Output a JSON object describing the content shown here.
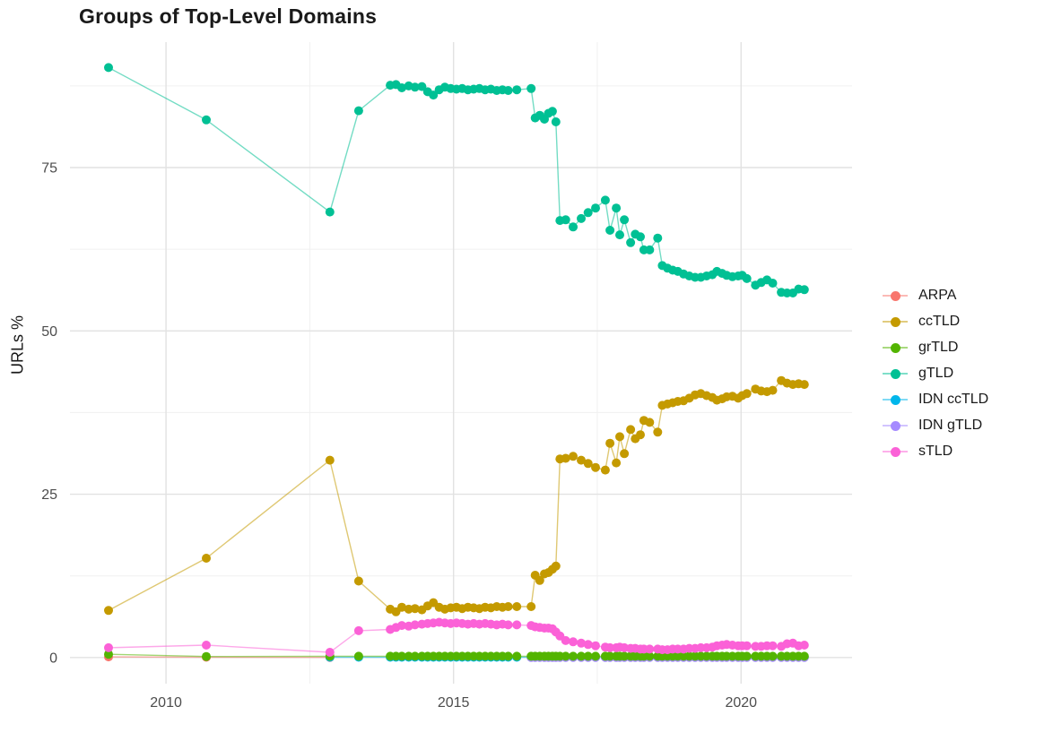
{
  "title": "Groups of Top-Level Domains",
  "legend": {
    "position": "right",
    "items": [
      "ARPA",
      "ccTLD",
      "grTLD",
      "gTLD",
      "IDN ccTLD",
      "IDN gTLD",
      "sTLD"
    ]
  },
  "chart_data": {
    "type": "line",
    "title": "Groups of Top-Level Domains",
    "xlabel": "",
    "ylabel": "URLs %",
    "grid": true,
    "legend_position": "right",
    "x_ticks": [
      2010,
      2015,
      2020
    ],
    "x_minor_ticks": [
      2012.5,
      2017.5
    ],
    "y_ticks": [
      0,
      25,
      50,
      75
    ],
    "y_minor_ticks": [
      12.5,
      37.5,
      62.5,
      87.5
    ],
    "xlim": [
      2008.33,
      2021.93
    ],
    "ylim": [
      -4,
      94.2
    ],
    "x": [
      2009.0,
      2010.7,
      2012.85,
      2013.35,
      2013.9,
      2014.0,
      2014.1,
      2014.22,
      2014.33,
      2014.45,
      2014.55,
      2014.65,
      2014.75,
      2014.85,
      2014.95,
      2015.05,
      2015.15,
      2015.25,
      2015.35,
      2015.45,
      2015.55,
      2015.65,
      2015.75,
      2015.85,
      2015.95,
      2016.1,
      2016.35,
      2016.42,
      2016.5,
      2016.58,
      2016.65,
      2016.72,
      2016.78,
      2016.85,
      2016.95,
      2017.08,
      2017.22,
      2017.34,
      2017.47,
      2017.64,
      2017.72,
      2017.83,
      2017.89,
      2017.97,
      2018.08,
      2018.16,
      2018.25,
      2018.31,
      2018.41,
      2018.55,
      2018.63,
      2018.72,
      2018.81,
      2018.9,
      2019.0,
      2019.1,
      2019.2,
      2019.3,
      2019.4,
      2019.5,
      2019.58,
      2019.67,
      2019.75,
      2019.85,
      2019.95,
      2020.02,
      2020.1,
      2020.25,
      2020.35,
      2020.45,
      2020.55,
      2020.7,
      2020.8,
      2020.9,
      2021.0,
      2021.1
    ],
    "series": [
      {
        "name": "ARPA",
        "color": "#F8766D",
        "values": [
          0.1,
          0.05,
          0.02,
          null,
          null,
          null,
          null,
          null,
          null,
          null,
          null,
          null,
          null,
          null,
          null,
          null,
          null,
          null,
          null,
          null,
          null,
          null,
          null,
          null,
          null,
          null,
          null,
          null,
          null,
          null,
          null,
          null,
          null,
          null,
          null,
          null,
          null,
          null,
          null,
          null,
          null,
          null,
          null,
          null,
          null,
          null,
          null,
          null,
          null,
          null,
          null,
          null,
          null,
          null,
          null,
          null,
          null,
          null,
          null,
          null,
          null,
          null,
          null,
          null,
          null,
          null,
          null,
          null,
          null,
          null,
          null,
          null,
          null,
          null,
          null,
          null
        ]
      },
      {
        "name": "ccTLD",
        "color": "#C49A00",
        "values": [
          7.2,
          15.2,
          30.2,
          11.7,
          7.4,
          7.0,
          7.7,
          7.4,
          7.5,
          7.3,
          7.9,
          8.4,
          7.7,
          7.4,
          7.6,
          7.7,
          7.5,
          7.7,
          7.6,
          7.5,
          7.7,
          7.6,
          7.8,
          7.7,
          7.8,
          7.8,
          7.8,
          12.6,
          11.8,
          12.8,
          13.0,
          13.5,
          14.0,
          30.4,
          30.5,
          30.8,
          30.2,
          29.7,
          29.1,
          28.7,
          32.8,
          29.8,
          33.8,
          31.2,
          34.9,
          33.5,
          34.1,
          36.3,
          36.0,
          34.5,
          38.6,
          38.8,
          39.0,
          39.2,
          39.3,
          39.7,
          40.2,
          40.4,
          40.1,
          39.8,
          39.4,
          39.6,
          39.9,
          40.0,
          39.7,
          40.1,
          40.4,
          41.1,
          40.8,
          40.7,
          40.9,
          42.4,
          42.0,
          41.8,
          41.9,
          41.8
        ]
      },
      {
        "name": "grTLD",
        "color": "#53B400",
        "values": [
          0.5,
          0.15,
          0.2,
          0.2,
          0.2,
          0.2,
          0.2,
          0.2,
          0.2,
          0.2,
          0.2,
          0.2,
          0.2,
          0.2,
          0.2,
          0.2,
          0.2,
          0.2,
          0.2,
          0.2,
          0.2,
          0.2,
          0.2,
          0.2,
          0.2,
          0.2,
          0.2,
          0.2,
          0.2,
          0.2,
          0.2,
          0.2,
          0.2,
          0.2,
          0.2,
          0.2,
          0.2,
          0.2,
          0.2,
          0.2,
          0.2,
          0.2,
          0.2,
          0.2,
          0.2,
          0.2,
          0.2,
          0.2,
          0.2,
          0.2,
          0.2,
          0.2,
          0.2,
          0.2,
          0.2,
          0.2,
          0.2,
          0.2,
          0.2,
          0.2,
          0.2,
          0.2,
          0.2,
          0.2,
          0.2,
          0.2,
          0.2,
          0.2,
          0.2,
          0.2,
          0.2,
          0.2,
          0.2,
          0.2,
          0.2,
          0.2
        ]
      },
      {
        "name": "gTLD",
        "color": "#00C094",
        "values": [
          90.3,
          82.3,
          68.2,
          83.7,
          87.6,
          87.7,
          87.2,
          87.5,
          87.3,
          87.4,
          86.6,
          86.1,
          86.9,
          87.3,
          87.1,
          87.0,
          87.1,
          86.9,
          87.0,
          87.1,
          86.9,
          87.0,
          86.8,
          86.9,
          86.8,
          86.9,
          87.1,
          82.6,
          83.0,
          82.4,
          83.3,
          83.6,
          82.0,
          66.9,
          67.0,
          65.9,
          67.2,
          68.1,
          68.8,
          70.0,
          65.4,
          68.8,
          64.7,
          67.0,
          63.5,
          64.8,
          64.4,
          62.4,
          62.4,
          64.2,
          60.0,
          59.6,
          59.3,
          59.1,
          58.7,
          58.4,
          58.2,
          58.2,
          58.4,
          58.6,
          59.1,
          58.8,
          58.5,
          58.3,
          58.4,
          58.5,
          58.0,
          57.0,
          57.4,
          57.8,
          57.3,
          55.9,
          55.8,
          55.8,
          56.4,
          56.3
        ]
      },
      {
        "name": "IDN ccTLD",
        "color": "#00B6EB",
        "values": [
          null,
          null,
          0.05,
          0.05,
          0.05,
          0.05,
          0.05,
          0.05,
          0.05,
          0.05,
          0.05,
          0.05,
          0.05,
          0.05,
          0.05,
          0.05,
          0.05,
          0.05,
          0.05,
          0.05,
          0.05,
          0.05,
          0.05,
          0.05,
          0.05,
          0.05,
          0.05,
          0.05,
          0.05,
          0.05,
          0.05,
          0.05,
          0.05,
          0.05,
          0.05,
          0.05,
          0.05,
          0.05,
          0.05,
          0.05,
          0.05,
          0.05,
          0.05,
          0.05,
          0.05,
          0.05,
          0.05,
          0.05,
          0.05,
          0.05,
          0.05,
          0.05,
          0.05,
          0.05,
          0.05,
          0.05,
          0.05,
          0.05,
          0.05,
          0.05,
          0.05,
          0.05,
          0.05,
          0.05,
          0.05,
          0.05,
          0.05,
          0.05,
          0.05,
          0.05,
          0.05,
          0.05,
          0.05,
          0.05,
          0.05,
          0.05
        ]
      },
      {
        "name": "IDN gTLD",
        "color": "#A58AFF",
        "values": [
          null,
          null,
          null,
          null,
          null,
          null,
          null,
          null,
          null,
          null,
          null,
          null,
          null,
          null,
          null,
          null,
          null,
          null,
          null,
          null,
          null,
          null,
          null,
          null,
          null,
          null,
          0.02,
          0.02,
          0.02,
          0.02,
          0.02,
          0.02,
          0.02,
          0.02,
          0.02,
          0.02,
          0.02,
          0.02,
          0.02,
          0.02,
          0.02,
          0.02,
          0.02,
          0.02,
          0.02,
          0.02,
          0.02,
          0.02,
          0.02,
          0.02,
          0.02,
          0.02,
          0.02,
          0.02,
          0.02,
          0.02,
          0.02,
          0.02,
          0.02,
          0.02,
          0.02,
          0.02,
          0.02,
          0.02,
          0.02,
          0.02,
          0.02,
          0.02,
          0.02,
          0.02,
          0.02,
          0.02,
          0.02,
          0.02,
          0.02,
          0.02
        ]
      },
      {
        "name": "sTLD",
        "color": "#FB61D7",
        "values": [
          1.5,
          1.9,
          0.8,
          4.1,
          4.3,
          4.6,
          4.9,
          4.8,
          5.0,
          5.1,
          5.2,
          5.3,
          5.4,
          5.3,
          5.2,
          5.3,
          5.2,
          5.1,
          5.2,
          5.1,
          5.2,
          5.1,
          5.0,
          5.1,
          5.0,
          5.0,
          4.9,
          4.7,
          4.6,
          4.5,
          4.5,
          4.4,
          3.9,
          3.3,
          2.6,
          2.4,
          2.2,
          2.0,
          1.8,
          1.6,
          1.5,
          1.5,
          1.6,
          1.5,
          1.4,
          1.4,
          1.3,
          1.3,
          1.3,
          1.3,
          1.2,
          1.2,
          1.3,
          1.3,
          1.3,
          1.4,
          1.4,
          1.5,
          1.5,
          1.6,
          1.8,
          1.9,
          2.0,
          1.9,
          1.8,
          1.8,
          1.8,
          1.7,
          1.7,
          1.8,
          1.8,
          1.7,
          2.1,
          2.2,
          1.8,
          1.9
        ]
      }
    ]
  },
  "style": {
    "grid_major_color": "#e2e2e2",
    "grid_minor_color": "#f0f0f0",
    "tick_label_color": "#4d4d4d",
    "background": "#ffffff"
  }
}
